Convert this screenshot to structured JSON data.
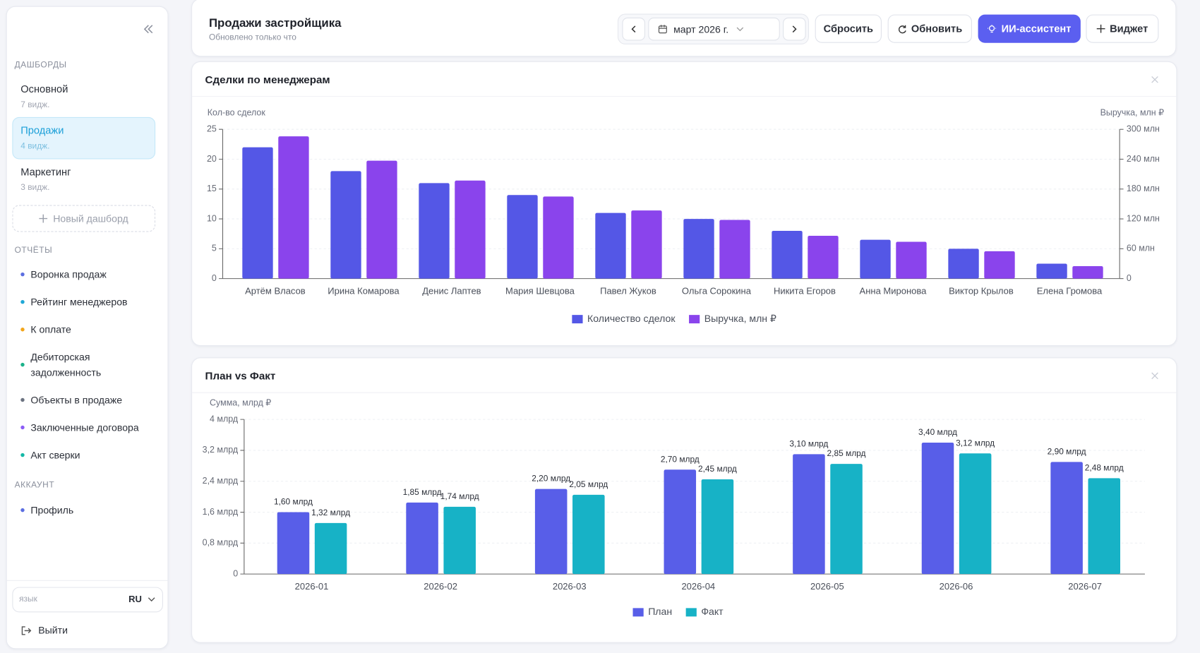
{
  "sidebar": {
    "dashboards_title": "ДАШБОРДЫ",
    "dashboards": [
      {
        "name": "Основной",
        "count": "7 видж."
      },
      {
        "name": "Продажи",
        "count": "4 видж."
      },
      {
        "name": "Маркетинг",
        "count": "3 видж."
      }
    ],
    "new_dashboard": "Новый дашборд",
    "reports_title": "ОТЧЁТЫ",
    "reports": [
      "Воронка продаж",
      "Рейтинг менеджеров",
      "К оплате",
      "Дебиторская задолженность",
      "Объекты в продаже",
      "Заключенные договора",
      "Акт сверки"
    ],
    "account_title": "АККАУНТ",
    "account": [
      "Профиль"
    ],
    "language_label": "язык",
    "language": "RU",
    "logout": "Выйти"
  },
  "header": {
    "title": "Продажи застройщика",
    "subtitle": "Обновлено только что",
    "period": "март 2026 г.",
    "buttons": [
      "Сбросить",
      "Обновить",
      "ИИ-ассистент",
      "Виджет"
    ]
  },
  "chart_data": [
    {
      "type": "bar",
      "title": "Сделки по менеджерам",
      "ylabel": "Кол-во сделок",
      "y2label": "Выручка, млн ₽",
      "categories": [
        "Артём Власов",
        "Ирина Комарова",
        "Денис Лаптев",
        "Мария Шевцова",
        "Павел Жуков",
        "Ольга Сорокина",
        "Никита Егоров",
        "Анна Миронова",
        "Виктор Крылов",
        "Елена Громова"
      ],
      "series": [
        {
          "name": "Количество сделок",
          "color": "#5457e6",
          "values": [
            22,
            18,
            16,
            14,
            11,
            10,
            8,
            6.5,
            5,
            2.5
          ]
        },
        {
          "name": "Выручка, млн ₽",
          "color": "#8a44ec",
          "axis": "y2",
          "values": [
            286,
            237,
            197,
            165,
            137,
            118,
            86,
            74,
            55,
            25
          ]
        }
      ],
      "ylim": [
        0,
        25
      ],
      "yticks": [
        0,
        5,
        10,
        15,
        20,
        25
      ],
      "y2lim": [
        0,
        300
      ],
      "y2ticks": [
        0,
        {
          "value": 60,
          "label": "60 млн"
        },
        {
          "value": 120,
          "label": "120 млн"
        },
        {
          "value": 180,
          "label": "180 млн"
        },
        {
          "value": 240,
          "label": "240 млн"
        },
        {
          "value": 300,
          "label": "300 млн"
        }
      ],
      "grid": true,
      "legend": "bottom"
    },
    {
      "type": "bar",
      "title": "План vs Факт",
      "ylabel": "Сумма, млрд ₽",
      "categories": [
        "2026-01",
        "2026-02",
        "2026-03",
        "2026-04",
        "2026-05",
        "2026-06",
        "2026-07"
      ],
      "series": [
        {
          "name": "План",
          "color": "#585ee8",
          "values": [
            1.6,
            1.85,
            2.2,
            2.7,
            3.1,
            3.4,
            2.9
          ],
          "value_labels": [
            "1,60 млрд",
            "1,85 млрд",
            "2,20 млрд",
            "2,70 млрд",
            "3,10 млрд",
            "3,40 млрд",
            "2,90 млрд"
          ]
        },
        {
          "name": "Факт",
          "color": "#17b2c6",
          "values": [
            1.32,
            1.74,
            2.05,
            2.45,
            2.85,
            3.12,
            2.48
          ],
          "value_labels": [
            "1,32 млрд",
            "1,74 млрд",
            "2,05 млрд",
            "2,45 млрд",
            "2,85 млрд",
            "3,12 млрд",
            "2,48 млрд"
          ]
        }
      ],
      "ylim": [
        0,
        4
      ],
      "yticks": [
        0,
        {
          "value": 0.8,
          "label": "0,8 млрд"
        },
        {
          "value": 1.6,
          "label": "1,6 млрд"
        },
        {
          "value": 2.4,
          "label": "2,4 млрд"
        },
        {
          "value": 3.2,
          "label": "3,2 млрд"
        },
        {
          "value": 4,
          "label": "4 млрд"
        }
      ],
      "grid": true,
      "legend": "bottom"
    }
  ]
}
